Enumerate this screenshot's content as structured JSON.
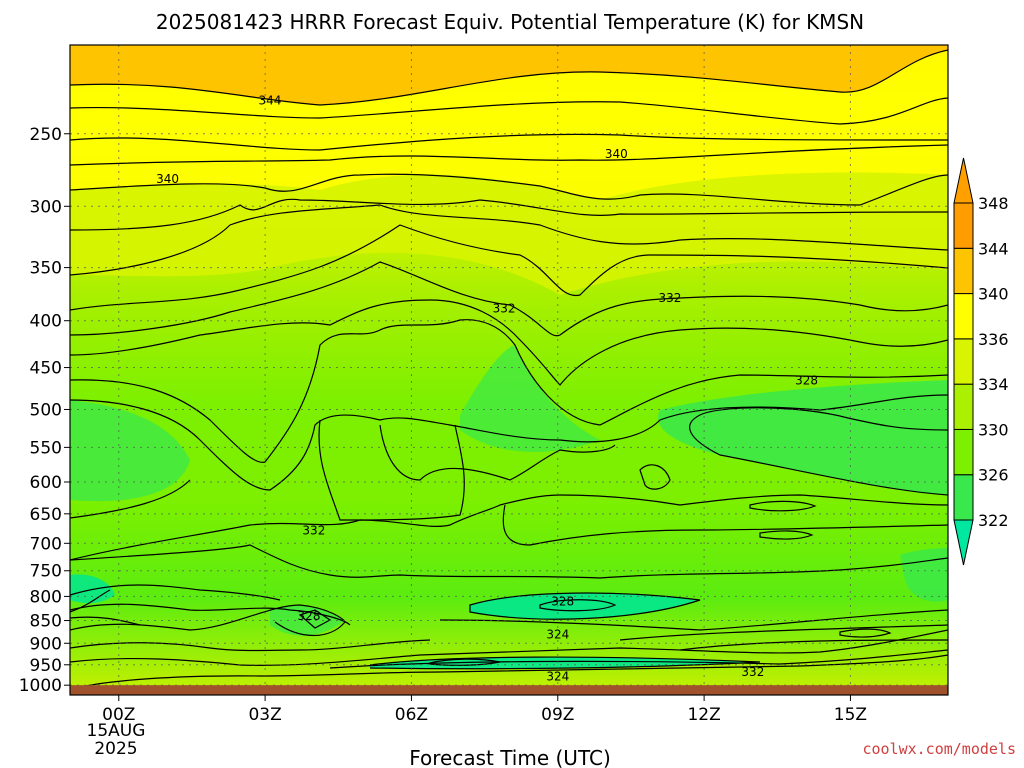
{
  "chart_data": {
    "type": "heatmap",
    "title": "2025081423 HRRR Forecast Equiv. Potential Temperature (K) for KMSN",
    "xlabel": "Forecast Time (UTC)",
    "ylabel": "",
    "x_ticks": [
      "00Z",
      "03Z",
      "06Z",
      "09Z",
      "12Z",
      "15Z"
    ],
    "x_tick_hours": [
      0,
      3,
      6,
      9,
      12,
      15
    ],
    "x_range_hours": [
      -1,
      17
    ],
    "date_label": "15AUG",
    "year_label": "2025",
    "y_ticks": [
      250,
      300,
      350,
      400,
      450,
      500,
      550,
      600,
      650,
      700,
      750,
      800,
      850,
      900,
      950,
      1000
    ],
    "y_range": [
      200,
      1025
    ],
    "y_scale": "log",
    "y_reversed": true,
    "grid": true,
    "colorbar": {
      "levels": [
        322,
        326,
        330,
        334,
        336,
        340,
        344,
        348
      ],
      "colors": [
        "#00e890",
        "#38e84c",
        "#7cf000",
        "#aaf000",
        "#d8f400",
        "#ffff00",
        "#ffc400",
        "#ff9c00"
      ],
      "low_color": "#00e8a0",
      "high_color": "#ffa000",
      "position": "right"
    },
    "contour_labels": [
      {
        "value": "344",
        "hour": 3.1,
        "p": 230
      },
      {
        "value": "340",
        "hour": 1.0,
        "p": 280
      },
      {
        "value": "340",
        "hour": 10.2,
        "p": 263
      },
      {
        "value": "332",
        "hour": 7.9,
        "p": 388
      },
      {
        "value": "332",
        "hour": 11.3,
        "p": 378
      },
      {
        "value": "328",
        "hour": 14.1,
        "p": 465
      },
      {
        "value": "332",
        "hour": 4.0,
        "p": 678
      },
      {
        "value": "328",
        "hour": 9.1,
        "p": 810
      },
      {
        "value": "328",
        "hour": 3.9,
        "p": 840
      },
      {
        "value": "324",
        "hour": 9.0,
        "p": 880
      },
      {
        "value": "324",
        "hour": 9.0,
        "p": 978
      },
      {
        "value": "332",
        "hour": 13.0,
        "p": 968
      }
    ],
    "ground_color": "#a0522d",
    "credit": "coolwx.com/models"
  }
}
